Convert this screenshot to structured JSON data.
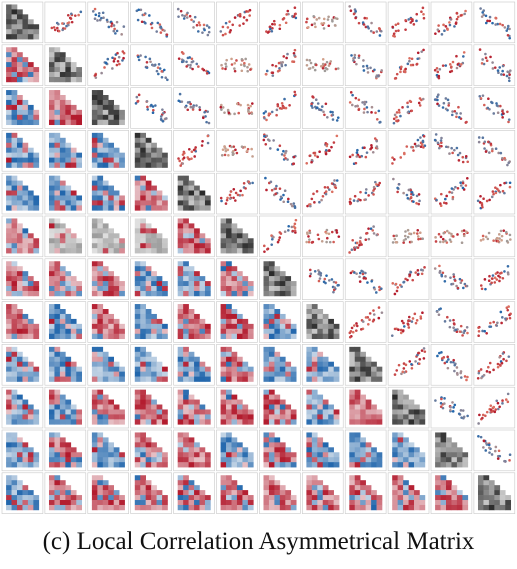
{
  "caption": "(c) Local Correlation Asymmetrical Matrix",
  "chart_data": {
    "type": "matrix",
    "title": "",
    "n_variables": 12,
    "layout": {
      "upper_triangle": "scatter",
      "diagonal": "grayscale map",
      "lower_triangle": "diverging choropleth map"
    },
    "colormap": {
      "positive": "#b2182b",
      "negative": "#2166ac",
      "neutral": "#f7f7f7"
    },
    "correlation_sign": [
      [
        0,
        1,
        -1,
        -1,
        -1,
        1,
        1,
        0,
        -1,
        1,
        1,
        -1
      ],
      [
        1,
        0,
        1,
        -1,
        -1,
        0,
        1,
        0,
        -1,
        1,
        1,
        -1
      ],
      [
        -1,
        1,
        0,
        -1,
        -1,
        0,
        1,
        -1,
        -1,
        1,
        -1,
        -1
      ],
      [
        -1,
        -1,
        -1,
        0,
        1,
        0,
        -1,
        1,
        1,
        1,
        -1,
        -1
      ],
      [
        -1,
        -1,
        -1,
        1,
        0,
        1,
        -1,
        1,
        1,
        -1,
        1,
        1
      ],
      [
        1,
        0,
        0,
        0,
        1,
        0,
        1,
        0,
        1,
        0,
        0,
        0
      ],
      [
        1,
        1,
        1,
        -1,
        -1,
        1,
        0,
        -1,
        -1,
        1,
        -1,
        1
      ],
      [
        1,
        -1,
        1,
        -1,
        1,
        1,
        -1,
        0,
        1,
        1,
        -1,
        1
      ],
      [
        -1,
        -1,
        -1,
        -1,
        -1,
        1,
        -1,
        -1,
        0,
        1,
        -1,
        1
      ],
      [
        -1,
        -1,
        1,
        1,
        1,
        1,
        1,
        -1,
        1,
        0,
        -1,
        1
      ],
      [
        -1,
        1,
        -1,
        1,
        1,
        -1,
        1,
        -1,
        -1,
        -1,
        0,
        -1
      ],
      [
        -1,
        1,
        1,
        1,
        1,
        1,
        1,
        1,
        1,
        1,
        1,
        0
      ]
    ]
  }
}
